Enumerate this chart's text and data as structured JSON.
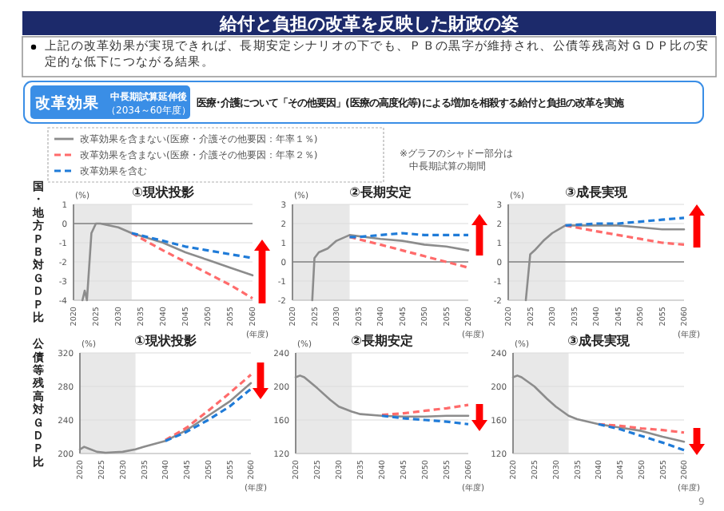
{
  "chart_data": [
    {
      "type": "other",
      "title": "給付と負担の改革を反映した財政の姿",
      "annotations": [
        "上記の改革効果が実現できれば、長期安定シナリオの下でも、ＰＢの黒字が維持され、公債等残高対ＧＤＰ比の安定的な低下につながる結果。",
        "改革効果",
        "中長期試算延伸後",
        "（2034～60年度）",
        "医療･介護について「その他要因」(医療の高度化等)による増加を相殺する給付と負担の改革を実施",
        "※グラフのシャドー部分は",
        "中長期試算の期間",
        "9"
      ]
    },
    {
      "type": "line",
      "title": "①現状投影",
      "xlabel": "(年度)",
      "ylabel": "国・地方ＰＢ対ＧＤＰ比",
      "annotations": [
        "(%)"
      ],
      "xlim": [
        2020,
        2060
      ],
      "ylim": [
        -4,
        1
      ],
      "xticks": [
        2020,
        2025,
        2030,
        2035,
        2040,
        2045,
        2050,
        2055,
        2060
      ],
      "yticks": [
        -4,
        -3,
        -2,
        -1,
        0,
        1
      ],
      "grid": "y",
      "legend": "top",
      "bands": [
        {
          "axis": "x",
          "from": 2020,
          "to": 2033,
          "color": "#e8e8e8"
        }
      ],
      "ref_lines": [
        {
          "axis": "y",
          "value": 0,
          "color": "#808080"
        }
      ],
      "series": [
        {
          "name": "改革効果を含まない(医療・介護その他要因：年率１％)",
          "color": "#8c8c8c",
          "line_style": "solid",
          "x": [
            2022,
            2022.5,
            2023,
            2024,
            2025,
            2026,
            2030,
            2033,
            2040,
            2045,
            2050,
            2055,
            2060
          ],
          "values": [
            -4,
            -3.5,
            -4,
            -0.5,
            0,
            0,
            -0.2,
            -0.5,
            -1.0,
            -1.5,
            -1.9,
            -2.3,
            -2.7
          ]
        },
        {
          "name": "改革効果を含まない(医療・介護その他要因：年率２％)",
          "color": "#ff6b6b",
          "line_style": "dashed",
          "x": [
            2033,
            2040,
            2045,
            2050,
            2055,
            2060
          ],
          "values": [
            -0.5,
            -1.4,
            -2.0,
            -2.6,
            -3.2,
            -3.9
          ]
        },
        {
          "name": "改革効果を含む",
          "color": "#1f7bd8",
          "line_style": "dashed",
          "x": [
            2033,
            2040,
            2045,
            2050,
            2055,
            2060
          ],
          "values": [
            -0.5,
            -0.9,
            -1.2,
            -1.4,
            -1.6,
            -1.8
          ]
        }
      ]
    },
    {
      "type": "line",
      "title": "②長期安定",
      "xlabel": "(年度)",
      "annotations": [
        "(%)"
      ],
      "xlim": [
        2020,
        2060
      ],
      "ylim": [
        -2,
        3
      ],
      "xticks": [
        2020,
        2025,
        2030,
        2035,
        2040,
        2045,
        2050,
        2055,
        2060
      ],
      "yticks": [
        -2,
        -1,
        0,
        1,
        2,
        3
      ],
      "grid": "y",
      "bands": [
        {
          "axis": "x",
          "from": 2020,
          "to": 2033,
          "color": "#e8e8e8"
        }
      ],
      "ref_lines": [
        {
          "axis": "y",
          "value": 0,
          "color": "#808080"
        }
      ],
      "series": [
        {
          "color": "#8c8c8c",
          "line_style": "solid",
          "x": [
            2024.5,
            2025,
            2026,
            2028,
            2030,
            2033,
            2040,
            2045,
            2050,
            2055,
            2060
          ],
          "values": [
            -2,
            0.2,
            0.5,
            0.7,
            1.1,
            1.4,
            1.2,
            1.1,
            0.9,
            0.8,
            0.6
          ]
        },
        {
          "color": "#ff6b6b",
          "line_style": "dashed",
          "x": [
            2033,
            2040,
            2045,
            2050,
            2055,
            2060
          ],
          "values": [
            1.3,
            0.9,
            0.6,
            0.3,
            0,
            -0.3
          ]
        },
        {
          "color": "#1f7bd8",
          "line_style": "dashed",
          "x": [
            2033,
            2035,
            2040,
            2045,
            2050,
            2055,
            2060
          ],
          "values": [
            1.3,
            1.3,
            1.4,
            1.5,
            1.4,
            1.4,
            1.4
          ]
        }
      ]
    },
    {
      "type": "line",
      "title": "③成長実現",
      "xlabel": "(年度)",
      "annotations": [
        "(%)"
      ],
      "xlim": [
        2020,
        2060
      ],
      "ylim": [
        -2,
        3
      ],
      "xticks": [
        2020,
        2025,
        2030,
        2035,
        2040,
        2045,
        2050,
        2055,
        2060
      ],
      "yticks": [
        -2,
        -1,
        0,
        1,
        2,
        3
      ],
      "grid": "y",
      "bands": [
        {
          "axis": "x",
          "from": 2020,
          "to": 2033,
          "color": "#e8e8e8"
        }
      ],
      "ref_lines": [
        {
          "axis": "y",
          "value": 0,
          "color": "#808080"
        }
      ],
      "series": [
        {
          "color": "#8c8c8c",
          "line_style": "solid",
          "x": [
            2024,
            2025,
            2026,
            2028,
            2030,
            2033,
            2040,
            2045,
            2050,
            2055,
            2060
          ],
          "values": [
            -2,
            0.4,
            0.6,
            1.1,
            1.5,
            1.9,
            1.9,
            1.9,
            1.8,
            1.7,
            1.7
          ]
        },
        {
          "color": "#ff6b6b",
          "line_style": "dashed",
          "x": [
            2033,
            2040,
            2045,
            2050,
            2055,
            2060
          ],
          "values": [
            1.9,
            1.6,
            1.4,
            1.2,
            1.0,
            0.9
          ]
        },
        {
          "color": "#1f7bd8",
          "line_style": "dashed",
          "x": [
            2033,
            2040,
            2045,
            2050,
            2055,
            2060
          ],
          "values": [
            1.9,
            2.0,
            2.0,
            2.1,
            2.2,
            2.3
          ]
        }
      ]
    },
    {
      "type": "line",
      "title": "①現状投影",
      "xlabel": "(年度)",
      "ylabel": "公債等残高対ＧＤＰ比",
      "annotations": [
        "(%)"
      ],
      "xlim": [
        2020,
        2060
      ],
      "ylim": [
        200,
        320
      ],
      "xticks": [
        2020,
        2025,
        2030,
        2035,
        2040,
        2045,
        2050,
        2055,
        2060
      ],
      "yticks": [
        200,
        240,
        280,
        320
      ],
      "grid": "y",
      "bands": [
        {
          "axis": "x",
          "from": 2020,
          "to": 2033,
          "color": "#e8e8e8"
        }
      ],
      "series": [
        {
          "color": "#8c8c8c",
          "line_style": "solid",
          "x": [
            2020,
            2021,
            2022,
            2024,
            2026,
            2030,
            2033,
            2035,
            2040,
            2045,
            2050,
            2055,
            2060
          ],
          "values": [
            205,
            208,
            206,
            202,
            201,
            202,
            205,
            208,
            215,
            228,
            245,
            262,
            284
          ]
        },
        {
          "color": "#ff6b6b",
          "line_style": "dashed",
          "x": [
            2040,
            2045,
            2050,
            2055,
            2060
          ],
          "values": [
            216,
            231,
            251,
            272,
            294
          ]
        },
        {
          "color": "#1f7bd8",
          "line_style": "dashed",
          "x": [
            2040,
            2045,
            2050,
            2055,
            2060
          ],
          "values": [
            215,
            226,
            240,
            256,
            277
          ]
        }
      ]
    },
    {
      "type": "line",
      "title": "②長期安定",
      "xlabel": "(年度)",
      "annotations": [
        "(%)"
      ],
      "xlim": [
        2020,
        2060
      ],
      "ylim": [
        120,
        240
      ],
      "xticks": [
        2020,
        2025,
        2030,
        2035,
        2040,
        2045,
        2050,
        2055,
        2060
      ],
      "yticks": [
        120,
        160,
        200,
        240
      ],
      "grid": "y",
      "bands": [
        {
          "axis": "x",
          "from": 2020,
          "to": 2033,
          "color": "#e8e8e8"
        }
      ],
      "series": [
        {
          "color": "#8c8c8c",
          "line_style": "solid",
          "x": [
            2020,
            2021,
            2022,
            2025,
            2028,
            2030,
            2033,
            2035,
            2040,
            2045,
            2050,
            2055,
            2060
          ],
          "values": [
            211,
            213,
            211,
            198,
            184,
            176,
            170,
            167,
            165,
            164,
            164,
            165,
            165
          ]
        },
        {
          "color": "#ff6b6b",
          "line_style": "dashed",
          "x": [
            2040,
            2045,
            2050,
            2055,
            2060
          ],
          "values": [
            166,
            168,
            171,
            174,
            178
          ]
        },
        {
          "color": "#1f7bd8",
          "line_style": "dashed",
          "x": [
            2040,
            2045,
            2050,
            2055,
            2060
          ],
          "values": [
            165,
            162,
            160,
            158,
            155
          ]
        }
      ]
    },
    {
      "type": "line",
      "title": "③成長実現",
      "xlabel": "(年度)",
      "annotations": [
        "(%)"
      ],
      "xlim": [
        2020,
        2060
      ],
      "ylim": [
        120,
        240
      ],
      "xticks": [
        2020,
        2025,
        2030,
        2035,
        2040,
        2045,
        2050,
        2055,
        2060
      ],
      "yticks": [
        120,
        160,
        200,
        240
      ],
      "grid": "y",
      "bands": [
        {
          "axis": "x",
          "from": 2020,
          "to": 2033,
          "color": "#e8e8e8"
        }
      ],
      "series": [
        {
          "color": "#8c8c8c",
          "line_style": "solid",
          "x": [
            2020,
            2021,
            2022,
            2025,
            2028,
            2030,
            2033,
            2035,
            2040,
            2045,
            2050,
            2055,
            2060
          ],
          "values": [
            211,
            213,
            211,
            200,
            185,
            176,
            165,
            161,
            155,
            151,
            147,
            140,
            134
          ]
        },
        {
          "color": "#ff6b6b",
          "line_style": "dashed",
          "x": [
            2040,
            2045,
            2050,
            2055,
            2060
          ],
          "values": [
            155,
            153,
            150,
            148,
            145
          ]
        },
        {
          "color": "#1f7bd8",
          "line_style": "dashed",
          "x": [
            2040,
            2045,
            2050,
            2055,
            2060
          ],
          "values": [
            155,
            149,
            141,
            133,
            124
          ]
        }
      ]
    }
  ]
}
